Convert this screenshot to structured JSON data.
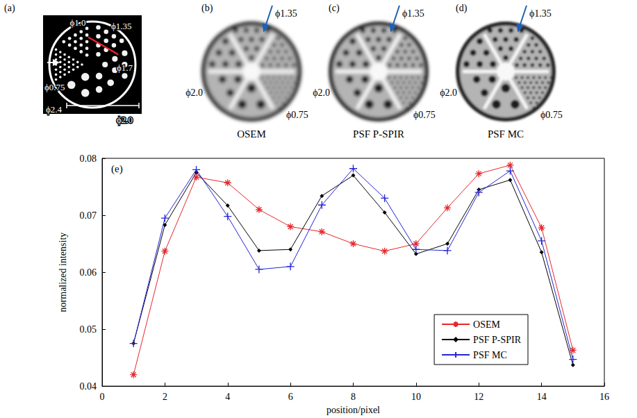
{
  "panel_a": {
    "letter": "(a)",
    "labels": [
      "ϕ1.0",
      "ϕ1.35",
      "ϕ1.7",
      "ϕ2.0",
      "ϕ2.4",
      "ϕ0.75"
    ]
  },
  "reconstructions": [
    {
      "letter": "(b)",
      "caption": "OSEM",
      "labels": [
        "ϕ1.35",
        "ϕ2.0",
        "ϕ0.75"
      ]
    },
    {
      "letter": "(c)",
      "caption": "PSF P-SPIR",
      "labels": [
        "ϕ1.35",
        "ϕ2.0",
        "ϕ0.75"
      ]
    },
    {
      "letter": "(d)",
      "caption": "PSF MC",
      "labels": [
        "ϕ1.35",
        "ϕ2.0",
        "ϕ0.75"
      ]
    }
  ],
  "chart_data": {
    "type": "line",
    "annotation": "(e)",
    "xlabel": "position/pixel",
    "ylabel": "normalized intensity",
    "x": [
      1,
      2,
      3,
      4,
      5,
      6,
      7,
      8,
      9,
      10,
      11,
      12,
      13,
      14,
      15
    ],
    "series": [
      {
        "name": "OSEM",
        "color": "#e8262b",
        "marker": "asterisk",
        "values": [
          0.042,
          0.0637,
          0.0767,
          0.0757,
          0.071,
          0.068,
          0.0671,
          0.065,
          0.0637,
          0.065,
          0.0713,
          0.0773,
          0.0788,
          0.0678,
          0.0463
        ]
      },
      {
        "name": "PSF P-SPIR",
        "color": "#000000",
        "marker": "diamond",
        "values": [
          0.0475,
          0.0683,
          0.0775,
          0.0717,
          0.0638,
          0.064,
          0.0734,
          0.077,
          0.0705,
          0.0632,
          0.065,
          0.0745,
          0.0762,
          0.0635,
          0.0437
        ]
      },
      {
        "name": "PSF MC",
        "color": "#2424d4",
        "marker": "plus",
        "values": [
          0.0475,
          0.0695,
          0.078,
          0.0698,
          0.0605,
          0.061,
          0.0718,
          0.0782,
          0.073,
          0.064,
          0.0638,
          0.074,
          0.0778,
          0.0655,
          0.0447
        ]
      }
    ],
    "xlim": [
      0,
      16
    ],
    "xticks": [
      0,
      2,
      4,
      6,
      8,
      10,
      12,
      14,
      16
    ],
    "ylim": [
      0.04,
      0.08
    ],
    "yticks": [
      0.04,
      0.05,
      0.06,
      0.07,
      0.08
    ],
    "grid": false,
    "legend": "lower right"
  }
}
